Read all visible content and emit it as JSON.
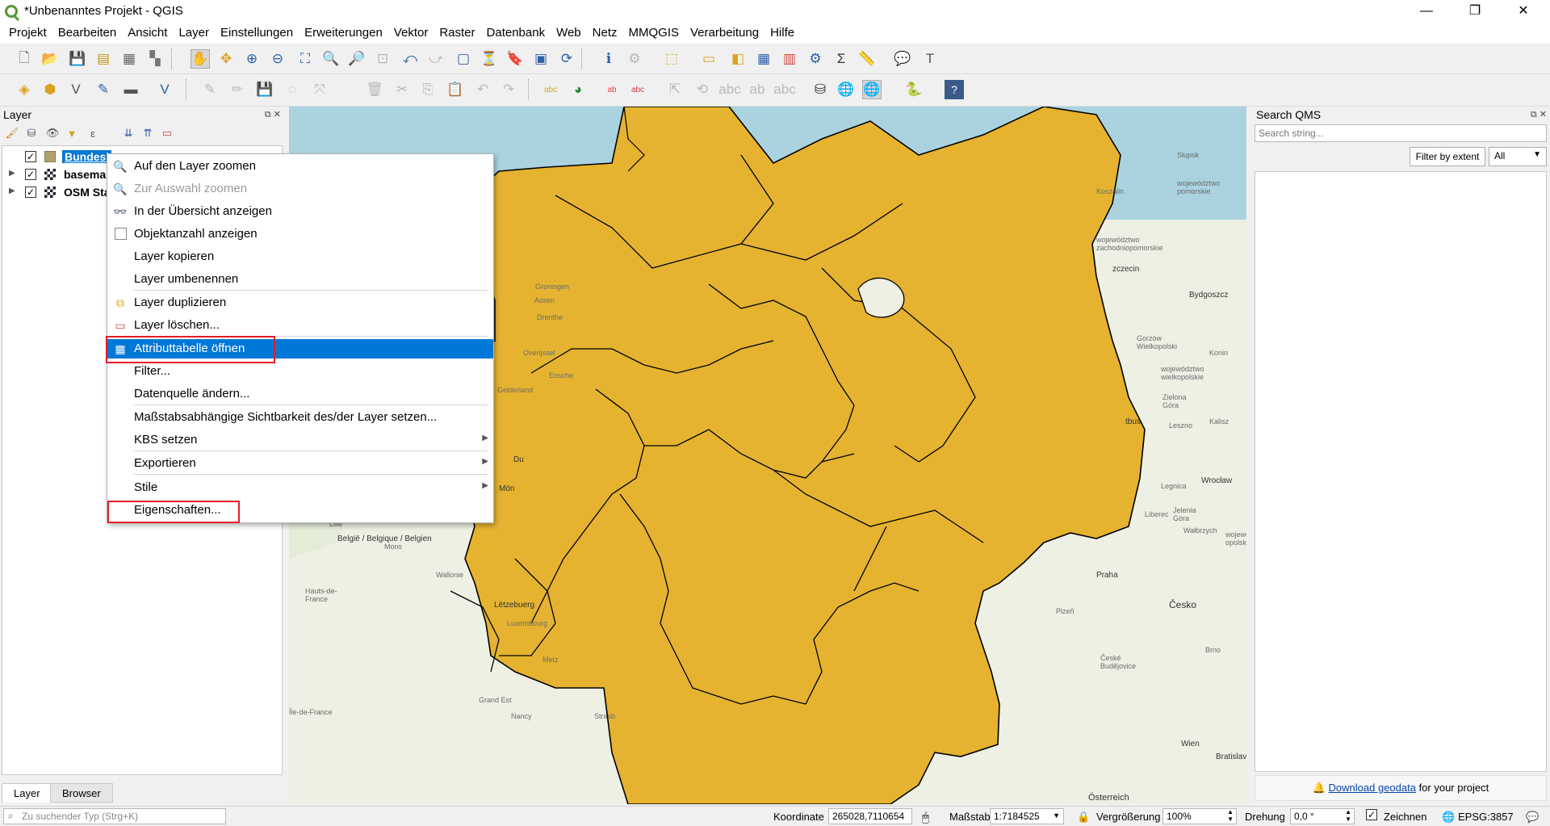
{
  "window": {
    "title": "*Unbenanntes Projekt - QGIS",
    "minimize": "—",
    "maximize": "❐",
    "close": "✕"
  },
  "menubar": [
    "Projekt",
    "Bearbeiten",
    "Ansicht",
    "Layer",
    "Einstellungen",
    "Erweiterungen",
    "Vektor",
    "Raster",
    "Datenbank",
    "Web",
    "Netz",
    "MMQGIS",
    "Verarbeitung",
    "Hilfe"
  ],
  "layer_panel": {
    "title": "Layer",
    "layers": [
      {
        "name": "Bundesl",
        "checked": true,
        "type": "polygon",
        "selected": true
      },
      {
        "name": "basema",
        "checked": true,
        "type": "raster",
        "selected": false
      },
      {
        "name": "OSM Sta",
        "checked": true,
        "type": "raster",
        "selected": false
      }
    ],
    "tabs": [
      "Layer",
      "Browser"
    ],
    "active_tab": "Layer"
  },
  "context_menu": {
    "items": [
      {
        "label": "Auf den Layer zoomen",
        "icon": "zoom-layer-icon",
        "enabled": true
      },
      {
        "label": "Zur Auswahl zoomen",
        "icon": "zoom-selection-icon",
        "enabled": false
      },
      {
        "label": "In der Übersicht anzeigen",
        "icon": "overview-icon",
        "enabled": true
      },
      {
        "label": "Objektanzahl anzeigen",
        "icon": "checkbox-icon",
        "enabled": true
      },
      {
        "label": "Layer kopieren",
        "enabled": true
      },
      {
        "label": "Layer umbenennen",
        "enabled": true
      },
      {
        "label": "Layer duplizieren",
        "icon": "duplicate-icon",
        "enabled": true
      },
      {
        "label": "Layer löschen...",
        "icon": "delete-layer-icon",
        "enabled": true
      },
      {
        "label": "Attributtabelle öffnen",
        "icon": "table-icon",
        "enabled": true,
        "highlighted": true
      },
      {
        "label": "Filter...",
        "enabled": true
      },
      {
        "label": "Datenquelle ändern...",
        "enabled": true
      },
      {
        "label": "Maßstabsabhängige Sichtbarkeit des/der Layer setzen...",
        "enabled": true
      },
      {
        "label": "KBS setzen",
        "enabled": true,
        "submenu": true
      },
      {
        "label": "Exportieren",
        "enabled": true,
        "submenu": true
      },
      {
        "label": "Stile",
        "enabled": true,
        "submenu": true
      },
      {
        "label": "Eigenschaften...",
        "enabled": true
      }
    ],
    "highlight_color": "#0078d7",
    "callout_color": "#e21d2a"
  },
  "map": {
    "fill_color": "#e5b330",
    "sea_color": "#aad3df",
    "land_color": "#eef0e4",
    "labels": {
      "slupsk": "Słupsk",
      "pomorskie": "województwo pomorskie",
      "koszalin": "Koszalin",
      "zachodniopomorskie": "województwo zachodniopomorskie",
      "szczecin": "zczecin",
      "bydgoszcz": "Bydgoszcz",
      "gorzow": "Gorzów Wielkopolski",
      "wielkopolskie": "województwo wielkopolskie",
      "konin": "Konin",
      "zielona": "Zielona Góra",
      "leszno": "Leszno",
      "kalisz": "Kalisz",
      "cottbus": "tbus",
      "wroclaw": "Wrocław",
      "legnica": "Legnica",
      "liberec": "Liberec",
      "jelenia": "Jelenia Góra",
      "walbrzych": "Wałbrzych",
      "opolskie": "województwo opolskie",
      "praha": "Praha",
      "cesko": "Česko",
      "plzen": "Plzeň",
      "budejovice": "České Budějovice",
      "brno": "Brno",
      "wien": "Wien",
      "bratislava": "Bratislava",
      "osterreich": "Österreich",
      "groningen": "Groningen",
      "drenthe": "Drenthe",
      "assen": "Assen",
      "overijssel": "Overijssel",
      "enschede": "Ensche",
      "gelderland": "Gelderland",
      "belgie": "België / Belgique / Belgien",
      "lille": "Lille",
      "mons": "Mons",
      "wallonie": "Wallonie",
      "luxembourg": "Luxembourg",
      "letzebuerg": "Lëtzebuerg",
      "metz": "Metz",
      "nancy": "Nancy",
      "strasbourg": "Strasb",
      "grandest": "Grand Est",
      "hautsdefrance": "Hauts-de-France",
      "iledefrance": "Île-de-France",
      "duisburg": "Du",
      "mons2": "Mön"
    }
  },
  "qms_panel": {
    "title": "Search QMS",
    "search_placeholder": "Search string...",
    "filter_button": "Filter by extent",
    "filter_select": "All",
    "footer_link": "Download geodata",
    "footer_text": " for your project"
  },
  "status_bar": {
    "locator_placeholder": "Zu suchender Typ (Strg+K)",
    "coord_label": "Koordinate",
    "coord_value": "265028,7110654",
    "scale_label": "Maßstab",
    "scale_value": "1:7184525",
    "magnifier_label": "Vergrößerung",
    "magnifier_value": "100%",
    "rotation_label": "Drehung",
    "rotation_value": "0,0 °",
    "render_label": "Zeichnen",
    "crs_value": "EPSG:3857"
  }
}
